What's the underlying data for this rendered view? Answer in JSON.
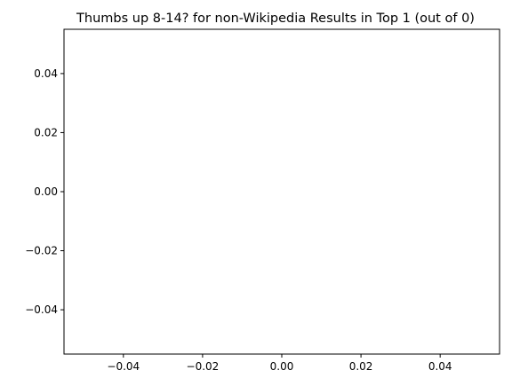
{
  "chart_data": {
    "type": "scatter",
    "title": "Thumbs up 8-14? for non-Wikipedia Results in Top 1 (out of 0)",
    "xlabel": "",
    "ylabel": "",
    "xlim": [
      -0.055,
      0.055
    ],
    "ylim": [
      -0.055,
      0.055
    ],
    "x_ticks": [
      -0.04,
      -0.02,
      0.0,
      0.02,
      0.04
    ],
    "x_tick_labels": [
      "−0.04",
      "−0.02",
      "0.00",
      "0.02",
      "0.04"
    ],
    "y_ticks": [
      -0.04,
      -0.02,
      0.0,
      0.02,
      0.04
    ],
    "y_tick_labels": [
      "−0.04",
      "−0.02",
      "0.00",
      "0.02",
      "0.04"
    ],
    "series": [
      {
        "x": [],
        "y": []
      }
    ],
    "grid": false,
    "legend": "none",
    "colors": {
      "axes": "#000000",
      "background": "#ffffff"
    }
  }
}
